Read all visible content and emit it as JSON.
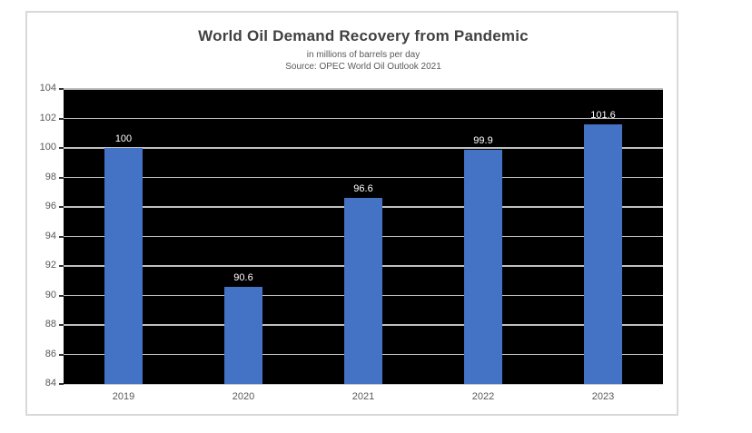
{
  "chart": {
    "title": "World Oil Demand Recovery from Pandemic",
    "subtitle": "in millions of barrels per day",
    "source": "Source: OPEC World Oil Outlook 2021"
  },
  "chart_data": {
    "type": "bar",
    "title": "World Oil Demand Recovery from Pandemic",
    "subtitle": "in millions of barrels per day",
    "source": "Source: OPEC World Oil Outlook 2021",
    "categories": [
      "2019",
      "2020",
      "2021",
      "2022",
      "2023"
    ],
    "values": [
      100,
      90.6,
      96.6,
      99.9,
      101.6
    ],
    "data_labels": [
      "100",
      "90.6",
      "96.6",
      "99.9",
      "101.6"
    ],
    "xlabel": "",
    "ylabel": "",
    "ylim": [
      84,
      104
    ],
    "ytick_step": 2,
    "yticks": [
      84,
      86,
      88,
      90,
      92,
      94,
      96,
      98,
      100,
      102,
      104
    ],
    "grid": true,
    "legend": "none",
    "colors": {
      "bar": "#4472C4",
      "plot_background": "#000000",
      "gridline": "#C0C0C0",
      "axis_line": "#C9C9C9",
      "tick_mark": "#333333",
      "data_label": "#FFFFFF",
      "axis_text": "#595959",
      "title_text": "#404040",
      "subtitle_text": "#595959",
      "chart_border": "#D9D9D9"
    }
  }
}
